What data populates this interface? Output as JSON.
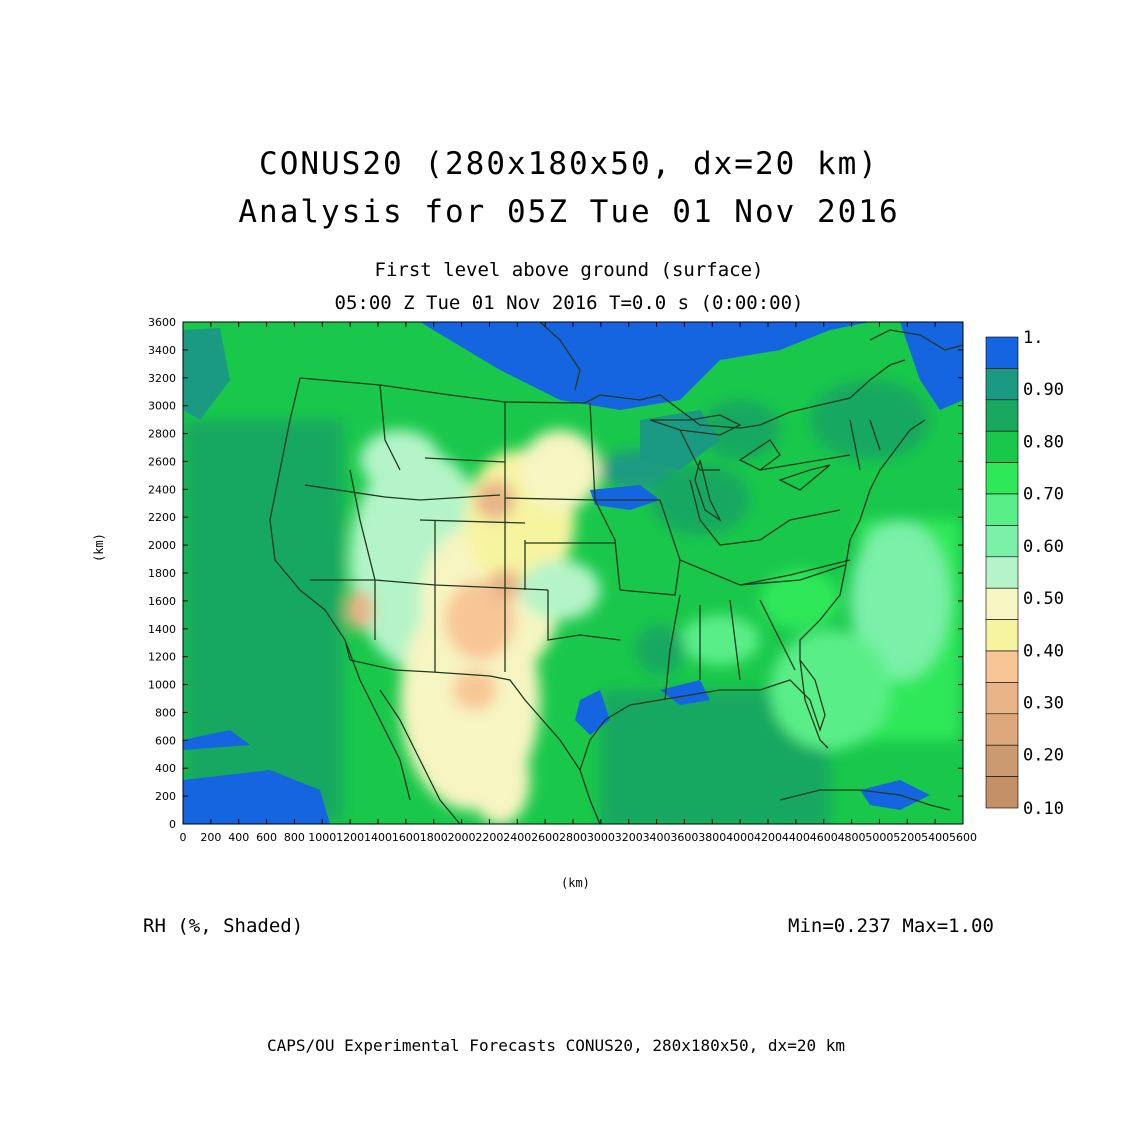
{
  "title": {
    "line1": "CONUS20 (280x180x50, dx=20 km)",
    "line2": "Analysis for 05Z Tue 01 Nov 2016"
  },
  "subtitle": {
    "level": "First level above ground (surface)",
    "time": "05:00 Z Tue 01 Nov 2016    T=0.0 s (0:00:00)"
  },
  "axes": {
    "x_unit": "(km)",
    "y_unit": "(km)",
    "x_range": [
      0,
      5600
    ],
    "y_range": [
      0,
      3600
    ],
    "x_ticks": [
      0,
      200,
      400,
      600,
      800,
      1000,
      1200,
      1400,
      1600,
      1800,
      2000,
      2200,
      2400,
      2600,
      2800,
      3000,
      3200,
      3400,
      3600,
      3800,
      4000,
      4200,
      4400,
      4600,
      4800,
      5000,
      5200,
      5400,
      5600
    ],
    "y_ticks": [
      0,
      200,
      400,
      600,
      800,
      1000,
      1200,
      1400,
      1600,
      1800,
      2000,
      2200,
      2400,
      2600,
      2800,
      3000,
      3200,
      3400,
      3600
    ]
  },
  "field": {
    "label": "RH (%, Shaded)",
    "stats": "Min=0.237 Max=1.00"
  },
  "colorbar": {
    "labels": [
      "1.",
      "0.90",
      "0.80",
      "0.70",
      "0.60",
      "0.50",
      "0.40",
      "0.30",
      "0.20",
      "0.10"
    ],
    "colors": [
      "#1565e0",
      "#1a9a82",
      "#19a860",
      "#19c84a",
      "#2ee85a",
      "#5aee88",
      "#7af0a8",
      "#b4f4c8",
      "#f7f5c2",
      "#f7f4a0",
      "#f8c695",
      "#e8b488",
      "#dda87c",
      "#cc9a70",
      "#c49068"
    ]
  },
  "footer": "CAPS/OU Experimental Forecasts  CONUS20, 280x180x50, dx=20 km"
}
